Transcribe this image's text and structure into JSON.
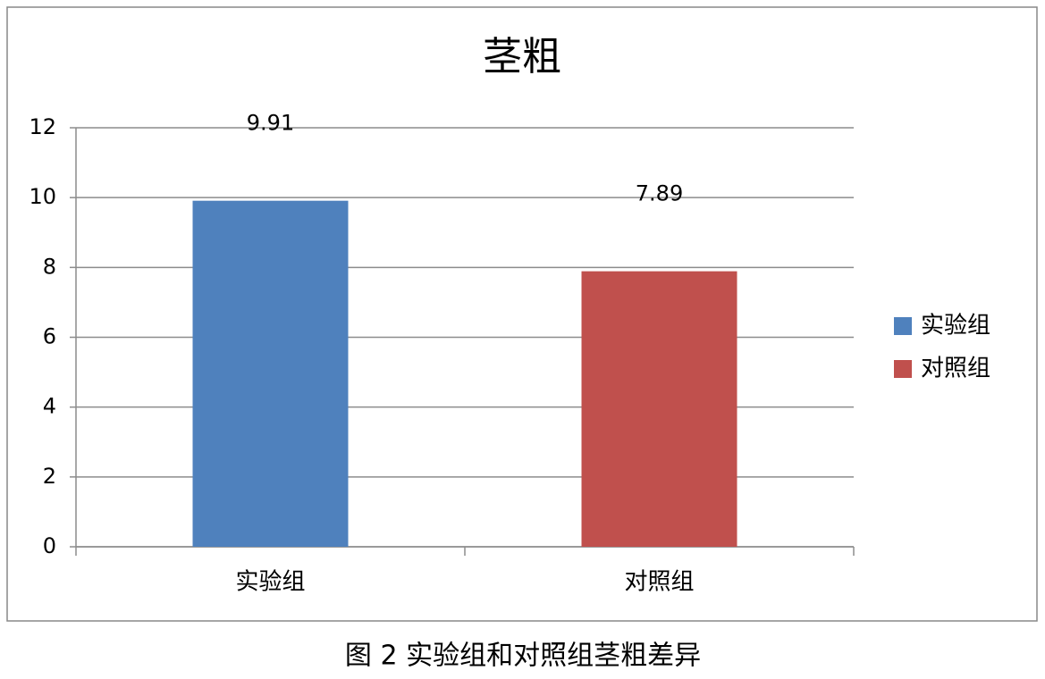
{
  "chart_data": {
    "type": "bar",
    "title": "茎粗",
    "categories": [
      "实验组",
      "对照组"
    ],
    "values": [
      9.91,
      7.89
    ],
    "colors": [
      "#4f81bd",
      "#c0504d"
    ],
    "ylim": [
      0,
      12
    ],
    "yticks": [
      0,
      2,
      4,
      6,
      8,
      10,
      12
    ],
    "grid": true,
    "legend": "right",
    "caption": "图 2 实验组和对照组茎粗差异"
  }
}
